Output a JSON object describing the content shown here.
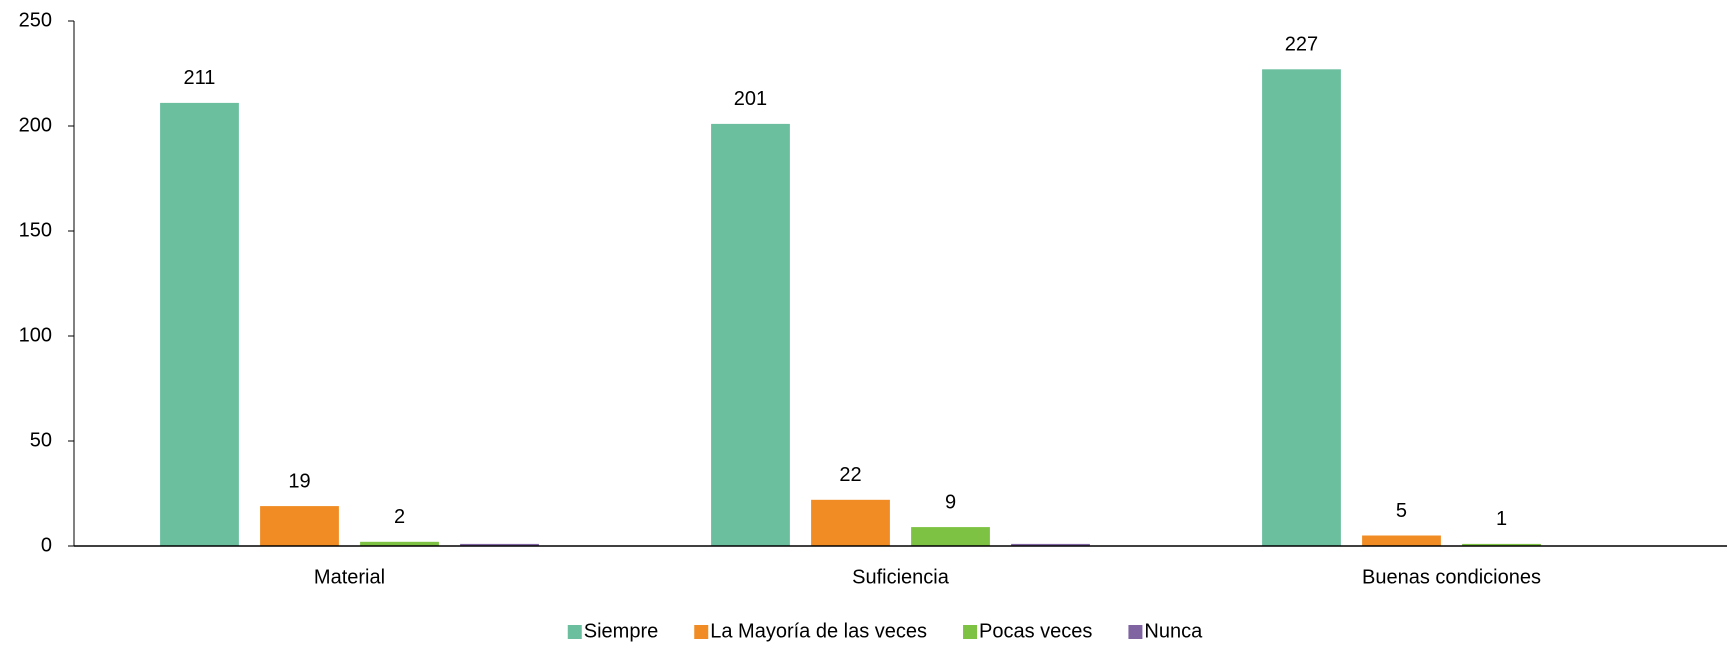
{
  "chart_data": {
    "type": "bar",
    "categories": [
      "Material",
      "Suficiencia",
      "Buenas condiciones"
    ],
    "series": [
      {
        "name": "Siempre",
        "color": "#6bbf9f",
        "values": [
          211,
          201,
          227
        ]
      },
      {
        "name": "La Mayoría de las veces",
        "color": "#f08c23",
        "values": [
          19,
          22,
          5
        ]
      },
      {
        "name": "Pocas veces",
        "color": "#7dc242",
        "values": [
          2,
          9,
          1
        ]
      },
      {
        "name": "Nunca",
        "color": "#8064a2",
        "values": [
          1,
          1,
          0
        ],
        "data_labels": false
      }
    ],
    "ylim": [
      0,
      250
    ],
    "yticks": [
      0,
      50,
      100,
      150,
      200,
      250
    ],
    "grid": false,
    "legend": "bottom"
  }
}
